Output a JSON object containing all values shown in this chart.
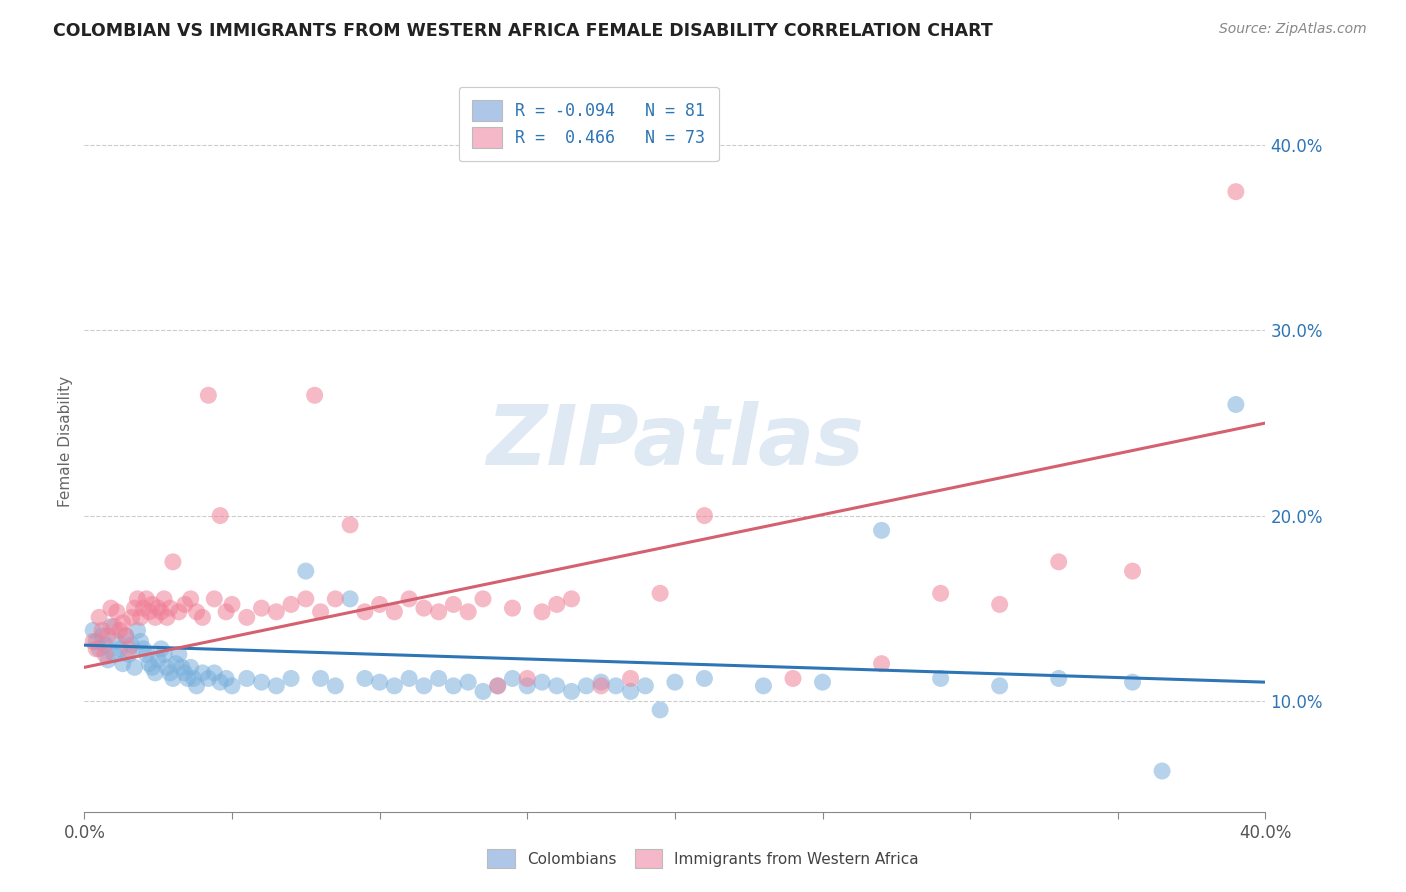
{
  "title": "COLOMBIAN VS IMMIGRANTS FROM WESTERN AFRICA FEMALE DISABILITY CORRELATION CHART",
  "source": "Source: ZipAtlas.com",
  "ylabel": "Female Disability",
  "xlim": [
    0.0,
    0.4
  ],
  "ylim": [
    0.04,
    0.44
  ],
  "watermark": "ZIPatlas",
  "blue_color": "#7ab0dc",
  "pink_color": "#f08098",
  "blue_line_color": "#2e75b6",
  "pink_line_color": "#d46070",
  "legend_label_blue": "R = -0.094   N = 81",
  "legend_label_pink": "R =  0.466   N = 73",
  "blue_line_intercept": 0.13,
  "blue_line_slope": -0.05,
  "pink_line_intercept": 0.118,
  "pink_line_slope": 0.33,
  "blue_scatter": [
    [
      0.003,
      0.138
    ],
    [
      0.004,
      0.132
    ],
    [
      0.005,
      0.128
    ],
    [
      0.006,
      0.135
    ],
    [
      0.007,
      0.13
    ],
    [
      0.008,
      0.122
    ],
    [
      0.009,
      0.14
    ],
    [
      0.01,
      0.125
    ],
    [
      0.011,
      0.132
    ],
    [
      0.012,
      0.128
    ],
    [
      0.013,
      0.12
    ],
    [
      0.014,
      0.135
    ],
    [
      0.015,
      0.125
    ],
    [
      0.016,
      0.13
    ],
    [
      0.017,
      0.118
    ],
    [
      0.018,
      0.138
    ],
    [
      0.019,
      0.132
    ],
    [
      0.02,
      0.128
    ],
    [
      0.021,
      0.125
    ],
    [
      0.022,
      0.12
    ],
    [
      0.023,
      0.118
    ],
    [
      0.024,
      0.115
    ],
    [
      0.025,
      0.122
    ],
    [
      0.026,
      0.128
    ],
    [
      0.027,
      0.125
    ],
    [
      0.028,
      0.118
    ],
    [
      0.029,
      0.115
    ],
    [
      0.03,
      0.112
    ],
    [
      0.031,
      0.12
    ],
    [
      0.032,
      0.125
    ],
    [
      0.033,
      0.118
    ],
    [
      0.034,
      0.115
    ],
    [
      0.035,
      0.112
    ],
    [
      0.036,
      0.118
    ],
    [
      0.037,
      0.112
    ],
    [
      0.038,
      0.108
    ],
    [
      0.04,
      0.115
    ],
    [
      0.042,
      0.112
    ],
    [
      0.044,
      0.115
    ],
    [
      0.046,
      0.11
    ],
    [
      0.048,
      0.112
    ],
    [
      0.05,
      0.108
    ],
    [
      0.055,
      0.112
    ],
    [
      0.06,
      0.11
    ],
    [
      0.065,
      0.108
    ],
    [
      0.07,
      0.112
    ],
    [
      0.075,
      0.17
    ],
    [
      0.08,
      0.112
    ],
    [
      0.085,
      0.108
    ],
    [
      0.09,
      0.155
    ],
    [
      0.095,
      0.112
    ],
    [
      0.1,
      0.11
    ],
    [
      0.105,
      0.108
    ],
    [
      0.11,
      0.112
    ],
    [
      0.115,
      0.108
    ],
    [
      0.12,
      0.112
    ],
    [
      0.125,
      0.108
    ],
    [
      0.13,
      0.11
    ],
    [
      0.135,
      0.105
    ],
    [
      0.14,
      0.108
    ],
    [
      0.145,
      0.112
    ],
    [
      0.15,
      0.108
    ],
    [
      0.155,
      0.11
    ],
    [
      0.16,
      0.108
    ],
    [
      0.165,
      0.105
    ],
    [
      0.17,
      0.108
    ],
    [
      0.175,
      0.11
    ],
    [
      0.18,
      0.108
    ],
    [
      0.185,
      0.105
    ],
    [
      0.19,
      0.108
    ],
    [
      0.2,
      0.11
    ],
    [
      0.21,
      0.112
    ],
    [
      0.23,
      0.108
    ],
    [
      0.25,
      0.11
    ],
    [
      0.27,
      0.192
    ],
    [
      0.29,
      0.112
    ],
    [
      0.31,
      0.108
    ],
    [
      0.33,
      0.112
    ],
    [
      0.355,
      0.11
    ],
    [
      0.365,
      0.062
    ],
    [
      0.39,
      0.26
    ],
    [
      0.195,
      0.095
    ]
  ],
  "pink_scatter": [
    [
      0.003,
      0.132
    ],
    [
      0.004,
      0.128
    ],
    [
      0.005,
      0.145
    ],
    [
      0.006,
      0.138
    ],
    [
      0.007,
      0.125
    ],
    [
      0.008,
      0.135
    ],
    [
      0.009,
      0.15
    ],
    [
      0.01,
      0.14
    ],
    [
      0.011,
      0.148
    ],
    [
      0.012,
      0.138
    ],
    [
      0.013,
      0.142
    ],
    [
      0.014,
      0.135
    ],
    [
      0.015,
      0.128
    ],
    [
      0.016,
      0.145
    ],
    [
      0.017,
      0.15
    ],
    [
      0.018,
      0.155
    ],
    [
      0.019,
      0.145
    ],
    [
      0.02,
      0.15
    ],
    [
      0.021,
      0.155
    ],
    [
      0.022,
      0.148
    ],
    [
      0.023,
      0.152
    ],
    [
      0.024,
      0.145
    ],
    [
      0.025,
      0.15
    ],
    [
      0.026,
      0.148
    ],
    [
      0.027,
      0.155
    ],
    [
      0.028,
      0.145
    ],
    [
      0.029,
      0.15
    ],
    [
      0.03,
      0.175
    ],
    [
      0.032,
      0.148
    ],
    [
      0.034,
      0.152
    ],
    [
      0.036,
      0.155
    ],
    [
      0.038,
      0.148
    ],
    [
      0.04,
      0.145
    ],
    [
      0.042,
      0.265
    ],
    [
      0.044,
      0.155
    ],
    [
      0.046,
      0.2
    ],
    [
      0.048,
      0.148
    ],
    [
      0.05,
      0.152
    ],
    [
      0.055,
      0.145
    ],
    [
      0.06,
      0.15
    ],
    [
      0.065,
      0.148
    ],
    [
      0.07,
      0.152
    ],
    [
      0.075,
      0.155
    ],
    [
      0.078,
      0.265
    ],
    [
      0.08,
      0.148
    ],
    [
      0.085,
      0.155
    ],
    [
      0.09,
      0.195
    ],
    [
      0.095,
      0.148
    ],
    [
      0.1,
      0.152
    ],
    [
      0.105,
      0.148
    ],
    [
      0.11,
      0.155
    ],
    [
      0.115,
      0.15
    ],
    [
      0.12,
      0.148
    ],
    [
      0.125,
      0.152
    ],
    [
      0.13,
      0.148
    ],
    [
      0.135,
      0.155
    ],
    [
      0.14,
      0.108
    ],
    [
      0.145,
      0.15
    ],
    [
      0.15,
      0.112
    ],
    [
      0.155,
      0.148
    ],
    [
      0.16,
      0.152
    ],
    [
      0.165,
      0.155
    ],
    [
      0.175,
      0.108
    ],
    [
      0.185,
      0.112
    ],
    [
      0.195,
      0.158
    ],
    [
      0.21,
      0.2
    ],
    [
      0.24,
      0.112
    ],
    [
      0.27,
      0.12
    ],
    [
      0.29,
      0.158
    ],
    [
      0.31,
      0.152
    ],
    [
      0.33,
      0.175
    ],
    [
      0.355,
      0.17
    ],
    [
      0.39,
      0.375
    ]
  ]
}
